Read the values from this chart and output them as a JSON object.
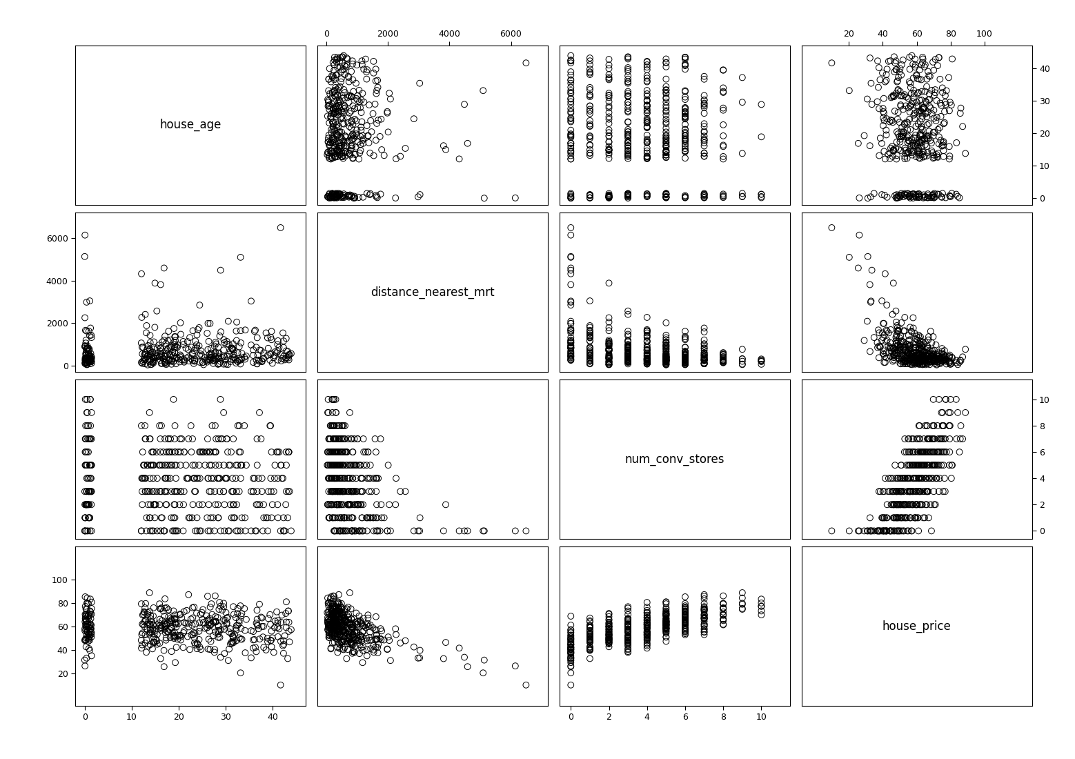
{
  "variables": [
    "house_age",
    "distance_nearest_mrt",
    "num_conv_stores",
    "house_price"
  ],
  "n": 414,
  "seed": 42,
  "marker_size": 40,
  "marker_facecolor": "none",
  "marker_edgecolor": "black",
  "marker_linewidth": 0.7,
  "label_fontsize": 12,
  "tick_fontsize": 9,
  "background_color": "white",
  "lims": {
    "house_age": [
      -2,
      47
    ],
    "distance_nearest_mrt": [
      -300,
      7200
    ],
    "num_conv_stores": [
      -0.6,
      11.5
    ],
    "house_price": [
      -8,
      128
    ]
  },
  "ticks": {
    "house_age": [
      0,
      10,
      20,
      30,
      40
    ],
    "distance_nearest_mrt": [
      0,
      2000,
      4000,
      6000
    ],
    "num_conv_stores": [
      0,
      2,
      4,
      6,
      8,
      10
    ],
    "house_price": [
      20,
      40,
      60,
      80,
      100
    ]
  }
}
